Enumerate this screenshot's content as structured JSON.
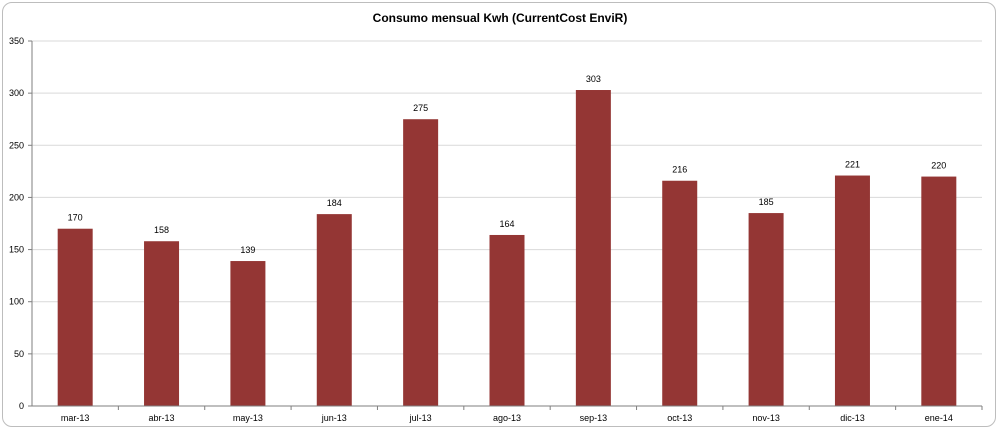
{
  "chart_data": {
    "type": "bar",
    "title": "Consumo mensual Kwh (CurrentCost EnviR)",
    "xlabel": "",
    "ylabel": "",
    "categories": [
      "mar-13",
      "abr-13",
      "may-13",
      "jun-13",
      "jul-13",
      "ago-13",
      "sep-13",
      "oct-13",
      "nov-13",
      "dic-13",
      "ene-14"
    ],
    "values": [
      170,
      158,
      139,
      184,
      275,
      164,
      303,
      216,
      185,
      221,
      220
    ],
    "data_labels": [
      "170",
      "158",
      "139",
      "184",
      "275",
      "164",
      "303",
      "216",
      "185",
      "221",
      "220"
    ],
    "ylim": [
      0,
      350
    ],
    "yticks": [
      0,
      50,
      100,
      150,
      200,
      250,
      300,
      350
    ],
    "ytick_labels": [
      "0",
      "50",
      "100",
      "150",
      "200",
      "250",
      "300",
      "350"
    ],
    "grid": true,
    "legend": "none",
    "bar_color": "#943634",
    "grid_color": "#d9d9d9",
    "axis_color": "#7f7f7f"
  }
}
